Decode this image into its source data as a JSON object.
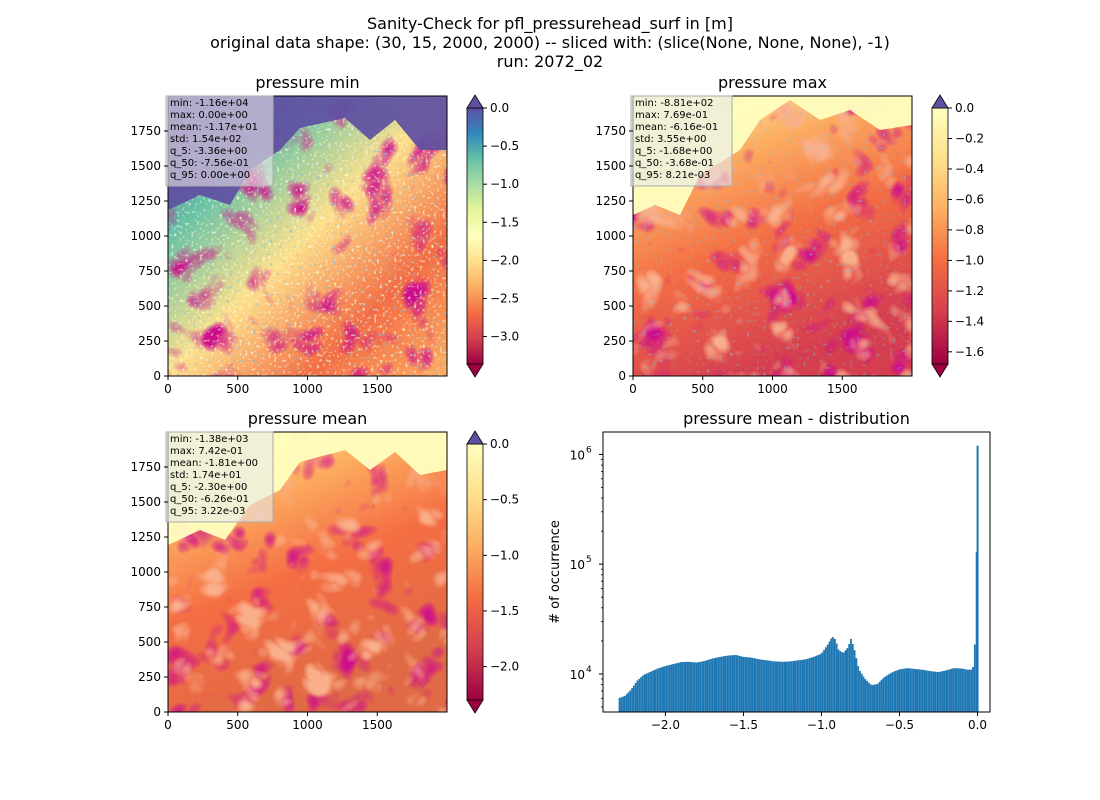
{
  "figure": {
    "title_lines": [
      "Sanity-Check for pfl_pressurehead_surf in [m]",
      "original data shape: (30, 15, 2000, 2000) -- sliced with: (slice(None, None, None), -1)",
      "run: 2072_02"
    ]
  },
  "chart_data": [
    {
      "type": "heatmap",
      "title": "pressure min",
      "x_ticks": [
        "0",
        "500",
        "1000",
        "1500"
      ],
      "y_ticks": [
        "0",
        "250",
        "500",
        "750",
        "1000",
        "1250",
        "1500",
        "1750"
      ],
      "xlim": [
        0,
        2000
      ],
      "ylim": [
        0,
        2000
      ],
      "colormap": "Spectral",
      "colorbar": {
        "vmin": -3.36,
        "vmax": 0.0,
        "ticks": [
          "0.0",
          "−0.5",
          "−1.0",
          "−1.5",
          "−2.0",
          "−2.5",
          "−3.0"
        ],
        "tick_values": [
          0,
          -0.5,
          -1.0,
          -1.5,
          -2.0,
          -2.5,
          -3.0
        ],
        "extend": "both"
      },
      "stats": [
        "min: -1.16e+04",
        "max: 0.00e+00",
        "mean: -1.17e+01",
        "std: 1.54e+02",
        "q_5: -3.36e+00",
        "q_50: -7.56e-01",
        "q_95: 0.00e+00"
      ],
      "dominant_colors": [
        "#5e4fa2",
        "#3288bd",
        "#66c2a5",
        "#fee08b",
        "#f46d43",
        "#9e0142"
      ]
    },
    {
      "type": "heatmap",
      "title": "pressure max",
      "x_ticks": [
        "0",
        "500",
        "1000",
        "1500"
      ],
      "y_ticks": [
        "0",
        "250",
        "500",
        "750",
        "1000",
        "1250",
        "1500",
        "1750"
      ],
      "xlim": [
        0,
        2000
      ],
      "ylim": [
        0,
        2000
      ],
      "colormap": "Spectral",
      "colorbar": {
        "vmin": -1.68,
        "vmax": 0.0,
        "ticks": [
          "0.0",
          "−0.2",
          "−0.4",
          "−0.6",
          "−0.8",
          "−1.0",
          "−1.2",
          "−1.4",
          "−1.6"
        ],
        "tick_values": [
          0,
          -0.2,
          -0.4,
          -0.6,
          -0.8,
          -1.0,
          -1.2,
          -1.4,
          -1.6
        ],
        "extend": "both"
      },
      "stats": [
        "min: -8.81e+02",
        "max: 7.69e-01",
        "mean: -6.16e-01",
        "std: 3.55e+00",
        "q_5: -1.68e+00",
        "q_50: -3.68e-01",
        "q_95: 8.21e-03"
      ],
      "dominant_colors": [
        "#ffffbf",
        "#fdae61",
        "#f46d43",
        "#d53e4f",
        "#9e0142",
        "#3288bd"
      ]
    },
    {
      "type": "heatmap",
      "title": "pressure mean",
      "x_ticks": [
        "0",
        "500",
        "1000",
        "1500"
      ],
      "y_ticks": [
        "0",
        "250",
        "500",
        "750",
        "1000",
        "1250",
        "1500",
        "1750"
      ],
      "xlim": [
        0,
        2000
      ],
      "ylim": [
        0,
        2000
      ],
      "colormap": "Spectral",
      "colorbar": {
        "vmin": -2.3,
        "vmax": 0.0,
        "ticks": [
          "0.0",
          "−0.5",
          "−1.0",
          "−1.5",
          "−2.0"
        ],
        "tick_values": [
          0,
          -0.5,
          -1.0,
          -1.5,
          -2.0
        ],
        "extend": "both"
      },
      "stats": [
        "min: -1.38e+03",
        "max: 7.42e-01",
        "mean: -1.81e+00",
        "std: 1.74e+01",
        "q_5: -2.30e+00",
        "q_50: -6.26e-01",
        "q_95: 3.22e-03"
      ],
      "dominant_colors": [
        "#ffffbf",
        "#fdae61",
        "#f46d43",
        "#d53e4f",
        "#9e0142"
      ]
    },
    {
      "type": "bar",
      "title": "pressure mean - distribution",
      "ylabel": "# of occurrence",
      "yscale": "log",
      "xlim": [
        -2.4,
        0.08
      ],
      "ylim": [
        4500,
        1600000
      ],
      "x_ticks": [
        "−2.0",
        "−1.5",
        "−1.0",
        "−0.5",
        "0.0"
      ],
      "x_tick_values": [
        -2.0,
        -1.5,
        -1.0,
        -0.5,
        0.0
      ],
      "y_ticks": [
        "10",
        "10",
        "10"
      ],
      "y_tick_exponents": [
        "4",
        "5",
        "6"
      ],
      "y_tick_values": [
        10000,
        100000,
        1000000
      ],
      "color": "#1f77b4",
      "profile": [
        [
          -2.3,
          6000
        ],
        [
          -2.26,
          6300
        ],
        [
          -2.22,
          7200
        ],
        [
          -2.18,
          8700
        ],
        [
          -2.14,
          9800
        ],
        [
          -2.1,
          10400
        ],
        [
          -2.05,
          11200
        ],
        [
          -2.0,
          11800
        ],
        [
          -1.95,
          12300
        ],
        [
          -1.9,
          12800
        ],
        [
          -1.85,
          12900
        ],
        [
          -1.8,
          12700
        ],
        [
          -1.75,
          13100
        ],
        [
          -1.7,
          13800
        ],
        [
          -1.65,
          14300
        ],
        [
          -1.6,
          14700
        ],
        [
          -1.55,
          14900
        ],
        [
          -1.5,
          14300
        ],
        [
          -1.45,
          14100
        ],
        [
          -1.4,
          13600
        ],
        [
          -1.35,
          13300
        ],
        [
          -1.3,
          13000
        ],
        [
          -1.25,
          12900
        ],
        [
          -1.2,
          13000
        ],
        [
          -1.15,
          13300
        ],
        [
          -1.1,
          13600
        ],
        [
          -1.05,
          14300
        ],
        [
          -1.0,
          15300
        ],
        [
          -0.96,
          18500
        ],
        [
          -0.93,
          22000
        ],
        [
          -0.91,
          20500
        ],
        [
          -0.89,
          16500
        ],
        [
          -0.86,
          15500
        ],
        [
          -0.83,
          17500
        ],
        [
          -0.81,
          21000
        ],
        [
          -0.79,
          17000
        ],
        [
          -0.76,
          11000
        ],
        [
          -0.72,
          9000
        ],
        [
          -0.68,
          7900
        ],
        [
          -0.64,
          8100
        ],
        [
          -0.6,
          9300
        ],
        [
          -0.55,
          10300
        ],
        [
          -0.5,
          11000
        ],
        [
          -0.45,
          11300
        ],
        [
          -0.4,
          11100
        ],
        [
          -0.35,
          10900
        ],
        [
          -0.3,
          10600
        ],
        [
          -0.25,
          10400
        ],
        [
          -0.2,
          10800
        ],
        [
          -0.15,
          11300
        ],
        [
          -0.1,
          11200
        ],
        [
          -0.06,
          10900
        ],
        [
          -0.03,
          11000
        ],
        [
          -0.01,
          25000
        ],
        [
          0.0,
          1200000
        ],
        [
          0.01,
          0
        ]
      ]
    }
  ]
}
